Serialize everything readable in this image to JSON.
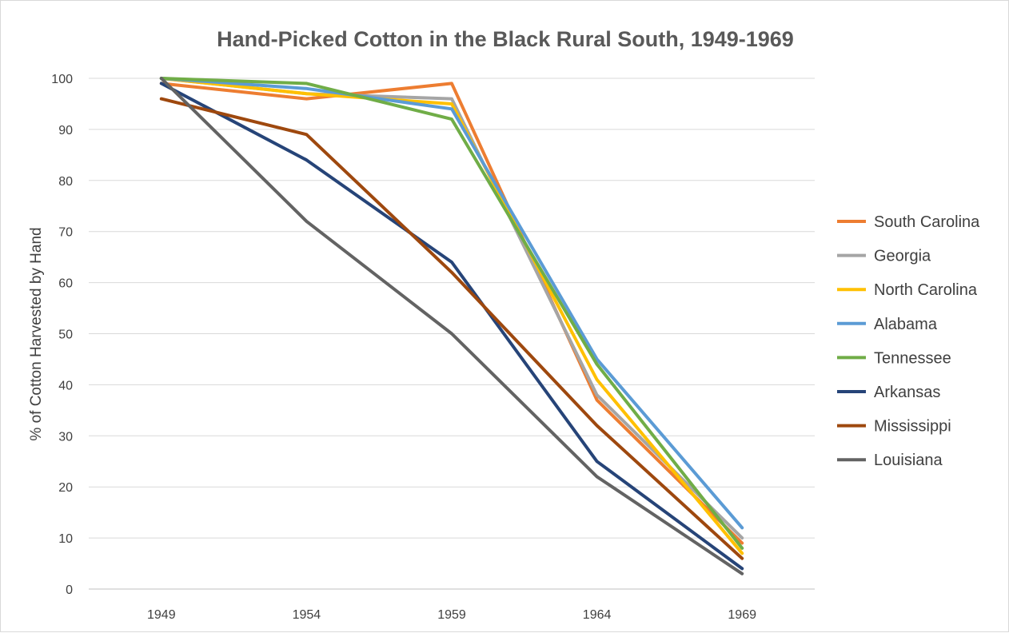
{
  "chart_data": {
    "type": "line",
    "title": "Hand-Picked Cotton in the Black Rural South, 1949-1969",
    "xlabel": "",
    "ylabel": "% of Cotton Harvested by Hand",
    "x": [
      "1949",
      "1954",
      "1959",
      "1964",
      "1969"
    ],
    "ylim": [
      0,
      100
    ],
    "yticks": [
      "0",
      "10",
      "20",
      "30",
      "40",
      "50",
      "60",
      "70",
      "80",
      "90",
      "100"
    ],
    "grid": true,
    "legend_position": "right",
    "series": [
      {
        "name": "South Carolina",
        "color": "#ED7D31",
        "values": [
          99,
          96,
          99,
          37,
          9
        ]
      },
      {
        "name": "Georgia",
        "color": "#A5A5A5",
        "values": [
          100,
          97,
          96,
          38,
          10
        ]
      },
      {
        "name": "North Carolina",
        "color": "#FFC000",
        "values": [
          100,
          97,
          95,
          41,
          7
        ]
      },
      {
        "name": "Alabama",
        "color": "#5B9BD5",
        "values": [
          100,
          98,
          94,
          45,
          12
        ]
      },
      {
        "name": "Tennessee",
        "color": "#70AD47",
        "values": [
          100,
          99,
          92,
          44,
          8
        ]
      },
      {
        "name": "Arkansas",
        "color": "#264478",
        "values": [
          99,
          84,
          64,
          25,
          4
        ]
      },
      {
        "name": "Mississippi",
        "color": "#9E480E",
        "values": [
          96,
          89,
          62,
          32,
          6
        ]
      },
      {
        "name": "Louisiana",
        "color": "#636363",
        "values": [
          100,
          72,
          50,
          22,
          3
        ]
      }
    ]
  }
}
